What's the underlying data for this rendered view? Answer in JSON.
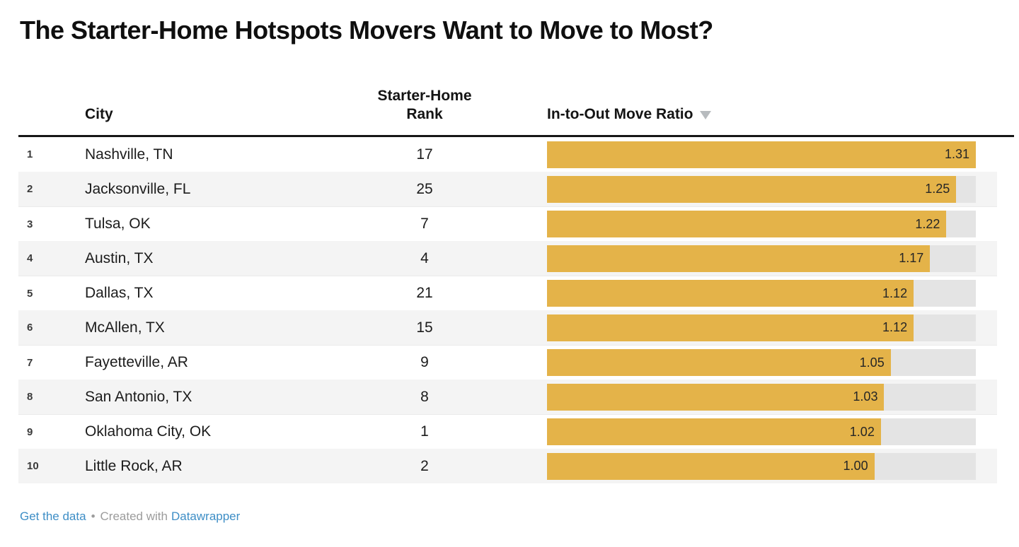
{
  "title": "The Starter-Home Hotspots Movers Want to Move to Most?",
  "table": {
    "columns": {
      "rank_header": "",
      "city": "City",
      "starter_home_rank": "Starter-Home Rank",
      "ratio": "In-to-Out Move Ratio"
    },
    "sort": {
      "column": "In-to-Out Move Ratio",
      "direction": "desc"
    },
    "rows": [
      {
        "rank": "1",
        "city": "Nashville, TN",
        "starter_rank": "17",
        "ratio": "1.31"
      },
      {
        "rank": "2",
        "city": "Jacksonville, FL",
        "starter_rank": "25",
        "ratio": "1.25"
      },
      {
        "rank": "3",
        "city": "Tulsa, OK",
        "starter_rank": "7",
        "ratio": "1.22"
      },
      {
        "rank": "4",
        "city": "Austin, TX",
        "starter_rank": "4",
        "ratio": "1.17"
      },
      {
        "rank": "5",
        "city": "Dallas, TX",
        "starter_rank": "21",
        "ratio": "1.12"
      },
      {
        "rank": "6",
        "city": "McAllen, TX",
        "starter_rank": "15",
        "ratio": "1.12"
      },
      {
        "rank": "7",
        "city": "Fayetteville, AR",
        "starter_rank": "9",
        "ratio": "1.05"
      },
      {
        "rank": "8",
        "city": "San Antonio, TX",
        "starter_rank": "8",
        "ratio": "1.03"
      },
      {
        "rank": "9",
        "city": "Oklahoma City, OK",
        "starter_rank": "1",
        "ratio": "1.02"
      },
      {
        "rank": "10",
        "city": "Little Rock, AR",
        "starter_rank": "2",
        "ratio": "1.00"
      }
    ]
  },
  "chart_data": {
    "type": "bar",
    "orientation": "horizontal",
    "title": "The Starter-Home Hotspots Movers Want to Move to Most?",
    "categories": [
      "Nashville, TN",
      "Jacksonville, FL",
      "Tulsa, OK",
      "Austin, TX",
      "Dallas, TX",
      "McAllen, TX",
      "Fayetteville, AR",
      "San Antonio, TX",
      "Oklahoma City, OK",
      "Little Rock, AR"
    ],
    "series": [
      {
        "name": "Starter-Home Rank",
        "values": [
          17,
          25,
          7,
          4,
          21,
          15,
          9,
          8,
          1,
          2
        ]
      },
      {
        "name": "In-to-Out Move Ratio",
        "values": [
          1.31,
          1.25,
          1.22,
          1.17,
          1.12,
          1.12,
          1.05,
          1.03,
          1.02,
          1.0
        ]
      }
    ],
    "xlabel": "",
    "ylabel": "",
    "xlim": [
      0,
      1.31
    ],
    "grid": false,
    "legend_position": "none"
  },
  "footer": {
    "get_data": "Get the data",
    "separator": "•",
    "created": "Created with",
    "brand": "Datawrapper"
  },
  "colors": {
    "bar": "#e4b349",
    "bar_track": "#e4e4e4",
    "zebra_stripe": "#f4f4f4",
    "header_rule": "#161616",
    "link_blue": "#3e8ec6",
    "footer_gray": "#9c9c9c",
    "sort_arrow": "#b7bbbe"
  }
}
